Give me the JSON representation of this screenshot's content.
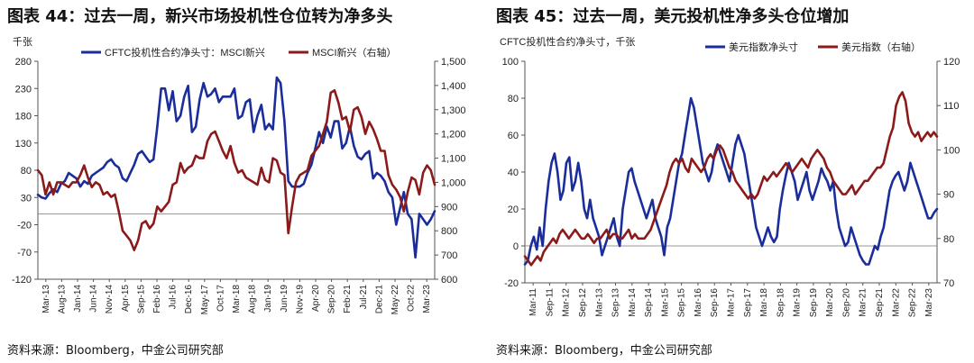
{
  "colors": {
    "navy": "#1a2d9a",
    "maroon": "#8b1a1a"
  },
  "charts": [
    {
      "title": "图表 44：过去一周，新兴市场投机性仓位转为净多头",
      "source": "资料来源：Bloomberg，中金公司研究部",
      "unit_label": "千张",
      "chart_data": {
        "type": "line",
        "x_tick_labels": [
          "Mar-13",
          "Aug-13",
          "Jan-14",
          "Jun-14",
          "Nov-14",
          "Apr-15",
          "Sep-15",
          "Feb-16",
          "Jul-16",
          "Dec-16",
          "May-17",
          "Oct-17",
          "Mar-18",
          "Aug-18",
          "Jan-19",
          "Jun-19",
          "Nov-19",
          "Apr-20",
          "Sep-20",
          "Feb-21",
          "Jul-21",
          "Dec-21",
          "May-22",
          "Oct-22",
          "Mar-23"
        ],
        "y_left": {
          "ticks": [
            280,
            230,
            180,
            130,
            80,
            30,
            -20,
            -70,
            -120
          ],
          "range": [
            -120,
            280
          ]
        },
        "y_right": {
          "ticks": [
            "1,500",
            "1,400",
            "1,300",
            "1,200",
            "1,100",
            "1,000",
            "900",
            "800",
            "700",
            "600"
          ],
          "range": [
            600,
            1500
          ]
        },
        "series": [
          {
            "name": "CFTC投机性合约净头寸：MSCI新兴",
            "axis": "left",
            "color": "#1a2d9a",
            "values": [
              35,
              30,
              28,
              38,
              45,
              40,
              55,
              60,
              75,
              70,
              65,
              50,
              60,
              55,
              70,
              75,
              80,
              85,
              95,
              100,
              90,
              85,
              65,
              60,
              75,
              90,
              110,
              115,
              105,
              95,
              100,
              160,
              230,
              230,
              190,
              225,
              170,
              180,
              215,
              235,
              150,
              160,
              210,
              240,
              215,
              220,
              230,
              205,
              215,
              215,
              215,
              230,
              175,
              180,
              205,
              210,
              150,
              180,
              200,
              155,
              165,
              155,
              250,
              240,
              170,
              60,
              50,
              50,
              50,
              55,
              75,
              90,
              120,
              150,
              130,
              160,
              140,
              170,
              170,
              120,
              130,
              160,
              125,
              105,
              100,
              110,
              115,
              65,
              75,
              70,
              60,
              40,
              30,
              -20,
              10,
              40,
              0,
              -10,
              -80,
              0,
              -10,
              -20,
              -10,
              5
            ]
          },
          {
            "name": "MSCI新兴（右轴）",
            "axis": "right",
            "color": "#8b1a1a",
            "values": [
              1050,
              1030,
              950,
              1000,
              950,
              1000,
              1000,
              990,
              980,
              1000,
              1000,
              1030,
              1070,
              1020,
              980,
              1000,
              990,
              950,
              960,
              940,
              950,
              880,
              800,
              780,
              760,
              720,
              760,
              830,
              840,
              810,
              830,
              900,
              880,
              900,
              920,
              990,
              1000,
              1080,
              1040,
              1060,
              1070,
              1110,
              1100,
              1100,
              1170,
              1200,
              1210,
              1170,
              1130,
              1100,
              1150,
              1080,
              1040,
              1050,
              1020,
              1010,
              1000,
              990,
              1060,
              1010,
              1000,
              1100,
              1090,
              1040,
              1030,
              790,
              900,
              1000,
              1030,
              1040,
              1050,
              1110,
              1130,
              1150,
              1200,
              1250,
              1370,
              1380,
              1330,
              1260,
              1270,
              1210,
              1300,
              1310,
              1270,
              1200,
              1250,
              1220,
              1180,
              1130,
              1130,
              1030,
              990,
              970,
              940,
              880,
              960,
              1020,
              1010,
              950,
              1040,
              1070,
              1050,
              990
            ]
          }
        ]
      }
    },
    {
      "title": "图表 45：过去一周，美元投机性净多头仓位增加",
      "source": "资料来源：Bloomberg，中金公司研究部",
      "unit_label": "CFTC投机性合约净头寸，千张",
      "chart_data": {
        "type": "line",
        "x_tick_labels": [
          "Mar-11",
          "Sep-11",
          "Mar-12",
          "Sep-12",
          "Mar-13",
          "Sep-13",
          "Mar-14",
          "Sep-14",
          "Mar-15",
          "Sep-15",
          "Mar-16",
          "Sep-16",
          "Mar-17",
          "Sep-17",
          "Mar-18",
          "Sep-18",
          "Mar-19",
          "Sep-19",
          "Mar-20",
          "Sep-20",
          "Mar-21",
          "Sep-21",
          "Mar-22",
          "Sep-22",
          "Mar-23"
        ],
        "y_left": {
          "ticks": [
            100,
            80,
            60,
            40,
            20,
            0,
            -20
          ],
          "range": [
            -20,
            100
          ]
        },
        "y_right": {
          "ticks": [
            120,
            110,
            100,
            90,
            80,
            70
          ],
          "range": [
            70,
            120
          ]
        },
        "series": [
          {
            "name": "美元指数净头寸",
            "axis": "left",
            "color": "#1a2d9a",
            "values": [
              -10,
              -8,
              0,
              5,
              -2,
              10,
              0,
              20,
              35,
              45,
              50,
              40,
              25,
              30,
              45,
              48,
              30,
              35,
              45,
              35,
              20,
              15,
              25,
              15,
              10,
              5,
              -5,
              0,
              5,
              10,
              15,
              5,
              0,
              20,
              30,
              40,
              42,
              35,
              30,
              25,
              20,
              15,
              20,
              25,
              15,
              10,
              5,
              -5,
              10,
              15,
              25,
              35,
              45,
              50,
              60,
              70,
              80,
              75,
              65,
              55,
              45,
              40,
              35,
              40,
              50,
              55,
              50,
              45,
              40,
              35,
              45,
              55,
              60,
              55,
              50,
              40,
              30,
              20,
              10,
              5,
              0,
              5,
              10,
              5,
              2,
              5,
              20,
              30,
              38,
              45,
              40,
              35,
              25,
              30,
              35,
              40,
              30,
              25,
              30,
              35,
              42,
              38,
              35,
              30,
              35,
              20,
              10,
              5,
              0,
              2,
              10,
              5,
              0,
              -5,
              -8,
              -10,
              -10,
              -5,
              0,
              -2,
              5,
              10,
              20,
              30,
              35,
              38,
              40,
              35,
              30,
              35,
              45,
              40,
              35,
              30,
              25,
              20,
              15,
              15,
              18,
              20
            ]
          },
          {
            "name": "美元指数（右轴）",
            "axis": "right",
            "color": "#8b1a1a",
            "values": [
              76,
              75,
              74,
              75,
              76,
              75,
              77,
              78,
              79,
              80,
              79,
              81,
              82,
              81,
              80,
              81,
              82,
              81,
              80,
              80,
              81,
              80,
              79,
              80,
              80,
              81,
              82,
              80,
              81,
              81,
              80,
              80,
              81,
              82,
              80,
              81,
              80,
              80,
              80,
              81,
              82,
              84,
              86,
              88,
              90,
              92,
              95,
              97,
              98,
              97,
              98,
              96,
              95,
              98,
              97,
              96,
              95,
              96,
              98,
              99,
              98,
              100,
              101,
              100,
              98,
              96,
              95,
              93,
              92,
              91,
              90,
              89,
              90,
              89,
              90,
              92,
              94,
              93,
              94,
              95,
              94,
              95,
              96,
              97,
              96,
              95,
              96,
              97,
              98,
              97,
              96,
              98,
              99,
              100,
              99,
              98,
              96,
              95,
              93,
              92,
              91,
              90,
              90,
              91,
              92,
              90,
              91,
              92,
              93,
              93,
              94,
              95,
              96,
              96,
              97,
              100,
              103,
              105,
              110,
              112,
              113,
              111,
              106,
              104,
              103,
              104,
              102,
              103,
              104,
              103,
              104,
              103
            ]
          }
        ]
      }
    }
  ]
}
